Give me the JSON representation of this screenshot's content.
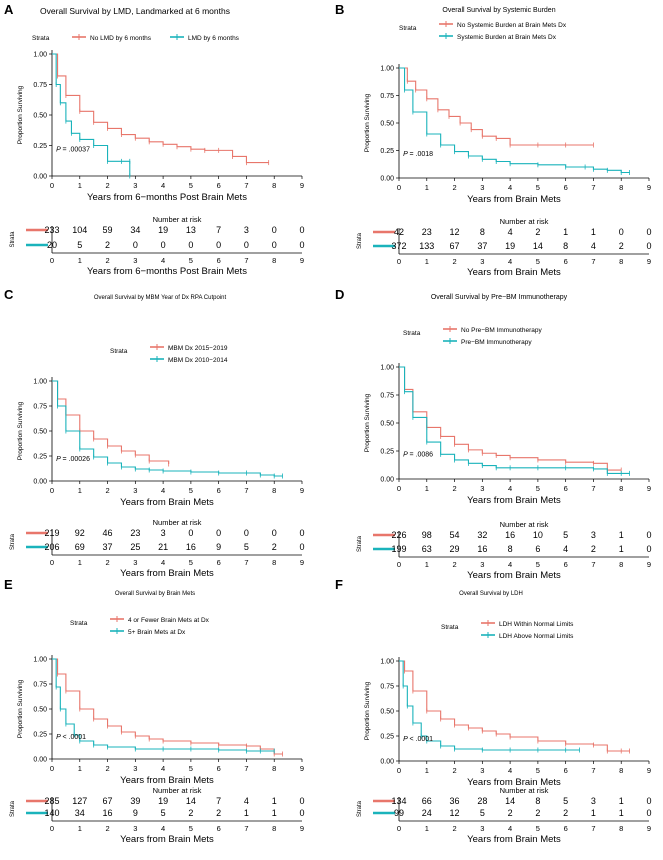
{
  "colors": {
    "red": "#e8766b",
    "teal": "#1ab3bb",
    "axis": "#000000"
  },
  "chart_data": [
    {
      "panel": "A",
      "type": "line",
      "title": "Overall Survival by LMD, Landmarked at 6 months",
      "legend_title": "Strata",
      "legend": [
        "No LMD by 6 months",
        "LMD by 6 months"
      ],
      "xlabel": "Years from 6−months Post Brain Mets",
      "ylabel": "Proportion Surviving",
      "xlim": [
        0,
        9
      ],
      "ylim": [
        0,
        1
      ],
      "xticks": [
        "0",
        "1",
        "2",
        "3",
        "4",
        "5",
        "6",
        "7",
        "8",
        "9"
      ],
      "yticks": [
        "0.00",
        "0.25",
        "0.50",
        "0.75",
        "1.00"
      ],
      "p_label": "P",
      "p_value": "= .00037",
      "risk_title": "Number at risk",
      "risk_strata_label": "Strata",
      "risk_xlabel": "Years from 6−months Post Brain Mets",
      "series": [
        {
          "name": "No LMD by 6 months",
          "color": "red",
          "x": [
            0,
            0.2,
            0.5,
            1,
            1.5,
            2,
            2.5,
            3,
            3.5,
            4,
            4.5,
            5,
            5.5,
            6,
            6.5,
            7,
            7.8
          ],
          "y": [
            1.0,
            0.82,
            0.66,
            0.53,
            0.44,
            0.39,
            0.34,
            0.31,
            0.28,
            0.26,
            0.24,
            0.22,
            0.21,
            0.21,
            0.16,
            0.11,
            0.11
          ]
        },
        {
          "name": "LMD by 6 months",
          "color": "teal",
          "x": [
            0,
            0.15,
            0.3,
            0.5,
            0.7,
            1,
            1.5,
            2,
            2.5,
            2.8,
            2.8
          ],
          "y": [
            1.0,
            0.75,
            0.6,
            0.45,
            0.35,
            0.3,
            0.25,
            0.12,
            0.12,
            0.12,
            0.0
          ]
        }
      ],
      "risk": [
        [
          "233",
          "104",
          "59",
          "34",
          "19",
          "13",
          "7",
          "3",
          "0",
          "0"
        ],
        [
          "20",
          "5",
          "2",
          "0",
          "0",
          "0",
          "0",
          "0",
          "0",
          "0"
        ]
      ]
    },
    {
      "panel": "B",
      "type": "line",
      "title": "Overall Survival by Systemic Burden",
      "legend_title": "Strata",
      "legend": [
        "No Systemic Burden at Brain Mets Dx",
        "Systemic Burden at Brain Mets Dx"
      ],
      "xlabel": "Years from Brain Mets",
      "ylabel": "Proportion Surviving",
      "xlim": [
        0,
        9
      ],
      "ylim": [
        0,
        1
      ],
      "xticks": [
        "0",
        "1",
        "2",
        "3",
        "4",
        "5",
        "6",
        "7",
        "8",
        "9"
      ],
      "yticks": [
        "0.00",
        "0.25",
        "0.50",
        "0.75",
        "1.00"
      ],
      "p_label": "P",
      "p_value": "= .0018",
      "risk_title": "Number at risk",
      "risk_strata_label": "Strata",
      "risk_xlabel": "Years from Brain Mets",
      "series": [
        {
          "name": "No Systemic Burden at Brain Mets Dx",
          "color": "red",
          "x": [
            0,
            0.3,
            0.6,
            1,
            1.4,
            1.8,
            2.2,
            2.6,
            3,
            3.5,
            4,
            5,
            6,
            7
          ],
          "y": [
            1.0,
            0.88,
            0.8,
            0.72,
            0.62,
            0.56,
            0.5,
            0.44,
            0.38,
            0.36,
            0.3,
            0.3,
            0.3,
            0.3
          ]
        },
        {
          "name": "Systemic Burden at Brain Mets Dx",
          "color": "teal",
          "x": [
            0,
            0.2,
            0.5,
            1,
            1.5,
            2,
            2.5,
            3,
            3.5,
            4,
            5,
            6,
            6.7,
            7,
            7.5,
            8,
            8.3
          ],
          "y": [
            1.0,
            0.8,
            0.6,
            0.4,
            0.3,
            0.24,
            0.2,
            0.17,
            0.15,
            0.13,
            0.12,
            0.1,
            0.1,
            0.08,
            0.07,
            0.05,
            0.05
          ]
        }
      ],
      "risk": [
        [
          "42",
          "23",
          "12",
          "8",
          "4",
          "2",
          "1",
          "1",
          "0",
          "0"
        ],
        [
          "372",
          "133",
          "67",
          "37",
          "19",
          "14",
          "8",
          "4",
          "2",
          "0"
        ]
      ]
    },
    {
      "panel": "C",
      "type": "line",
      "title": "Overall Survival by MBM Year of Dx RPA Cutpoint",
      "legend_title": "Strata",
      "legend": [
        "MBM Dx 2015−2019",
        "MBM Dx 2010−2014"
      ],
      "xlabel": "Years from Brain Mets",
      "ylabel": "Proportion Surviving",
      "xlim": [
        0,
        9
      ],
      "ylim": [
        0,
        1
      ],
      "xticks": [
        "0",
        "1",
        "2",
        "3",
        "4",
        "5",
        "6",
        "7",
        "8",
        "9"
      ],
      "yticks": [
        "0.00",
        "0.25",
        "0.50",
        "0.75",
        "1.00"
      ],
      "p_label": "P",
      "p_value": "= .00026",
      "risk_title": "Number at risk",
      "risk_strata_label": "Strata",
      "risk_xlabel": "Years from Brain Mets",
      "series": [
        {
          "name": "MBM Dx 2015−2019",
          "color": "red",
          "x": [
            0,
            0.2,
            0.5,
            1,
            1.5,
            2,
            2.5,
            3,
            3.5,
            4.2
          ],
          "y": [
            1.0,
            0.82,
            0.66,
            0.5,
            0.42,
            0.35,
            0.3,
            0.26,
            0.2,
            0.17
          ]
        },
        {
          "name": "MBM Dx 2010−2014",
          "color": "teal",
          "x": [
            0,
            0.2,
            0.5,
            1,
            1.5,
            2,
            2.5,
            3,
            3.5,
            4,
            5,
            6,
            7,
            7.5,
            8,
            8.3
          ],
          "y": [
            1.0,
            0.75,
            0.5,
            0.32,
            0.24,
            0.18,
            0.14,
            0.12,
            0.11,
            0.1,
            0.09,
            0.08,
            0.08,
            0.06,
            0.05,
            0.05
          ]
        }
      ],
      "risk": [
        [
          "219",
          "92",
          "46",
          "23",
          "3",
          "0",
          "0",
          "0",
          "0",
          "0"
        ],
        [
          "206",
          "69",
          "37",
          "25",
          "21",
          "16",
          "9",
          "5",
          "2",
          "0"
        ]
      ]
    },
    {
      "panel": "D",
      "type": "line",
      "title": "Overall Survival by Pre−BM Immunotherapy",
      "legend_title": "Strata",
      "legend": [
        "No Pre−BM Immunotherapy",
        "Pre−BM Immunotherapy"
      ],
      "xlabel": "Years from Brain Mets",
      "ylabel": "Proportion Surviving",
      "xlim": [
        0,
        9
      ],
      "ylim": [
        0,
        1
      ],
      "xticks": [
        "0",
        "1",
        "2",
        "3",
        "4",
        "5",
        "6",
        "7",
        "8",
        "9"
      ],
      "yticks": [
        "0.00",
        "0.25",
        "0.50",
        "0.75",
        "1.00"
      ],
      "p_label": "P",
      "p_value": "= .0086",
      "risk_title": "Number at risk",
      "risk_strata_label": "Strata",
      "risk_xlabel": "Years from Brain Mets",
      "series": [
        {
          "name": "No Pre−BM Immunotherapy",
          "color": "red",
          "x": [
            0,
            0.2,
            0.5,
            1,
            1.5,
            2,
            2.5,
            3,
            3.5,
            4,
            5,
            6,
            7,
            7.5,
            8
          ],
          "y": [
            1.0,
            0.8,
            0.6,
            0.46,
            0.38,
            0.31,
            0.26,
            0.23,
            0.21,
            0.19,
            0.17,
            0.15,
            0.14,
            0.08,
            0.08
          ]
        },
        {
          "name": "Pre−BM Immunotherapy",
          "color": "teal",
          "x": [
            0,
            0.2,
            0.5,
            1,
            1.5,
            2,
            2.5,
            3,
            3.5,
            4,
            5,
            6,
            7,
            7.5,
            8,
            8.3
          ],
          "y": [
            1.0,
            0.78,
            0.55,
            0.33,
            0.22,
            0.17,
            0.14,
            0.12,
            0.1,
            0.1,
            0.1,
            0.1,
            0.09,
            0.05,
            0.05,
            0.05
          ]
        }
      ],
      "risk": [
        [
          "226",
          "98",
          "54",
          "32",
          "16",
          "10",
          "5",
          "3",
          "1",
          "0"
        ],
        [
          "199",
          "63",
          "29",
          "16",
          "8",
          "6",
          "4",
          "2",
          "1",
          "0"
        ]
      ]
    },
    {
      "panel": "E",
      "type": "line",
      "title": "Overall Survival by Brain Mets",
      "legend_title": "Strata",
      "legend": [
        "4 or Fewer Brain Mets at Dx",
        "5+ Brain Mets at Dx"
      ],
      "xlabel": "Years from Brain Mets",
      "ylabel": "Proportion Surviving",
      "xlim": [
        0,
        9
      ],
      "ylim": [
        0,
        1
      ],
      "xticks": [
        "0",
        "1",
        "2",
        "3",
        "4",
        "5",
        "6",
        "7",
        "8",
        "9"
      ],
      "yticks": [
        "0.00",
        "0.25",
        "0.50",
        "0.75",
        "1.00"
      ],
      "p_label": "P",
      "p_value": "< .0001",
      "risk_title": "Number at risk",
      "risk_strata_label": "Strata",
      "risk_xlabel": "Years from Brain Mets",
      "series": [
        {
          "name": "4 or Fewer Brain Mets at Dx",
          "color": "red",
          "x": [
            0,
            0.2,
            0.5,
            1,
            1.5,
            2,
            2.5,
            3,
            3.5,
            4,
            5,
            6,
            7,
            7.5,
            8,
            8.3
          ],
          "y": [
            1.0,
            0.85,
            0.68,
            0.5,
            0.4,
            0.33,
            0.27,
            0.23,
            0.2,
            0.18,
            0.16,
            0.14,
            0.13,
            0.1,
            0.05,
            0.05
          ]
        },
        {
          "name": "5+ Brain Mets at Dx",
          "color": "teal",
          "x": [
            0,
            0.15,
            0.3,
            0.5,
            0.8,
            1,
            1.5,
            2,
            3,
            4,
            5,
            6,
            7,
            7.5,
            8
          ],
          "y": [
            1.0,
            0.72,
            0.5,
            0.35,
            0.24,
            0.18,
            0.14,
            0.12,
            0.1,
            0.1,
            0.1,
            0.09,
            0.08,
            0.08,
            0.08
          ]
        }
      ],
      "risk": [
        [
          "285",
          "127",
          "67",
          "39",
          "19",
          "14",
          "7",
          "4",
          "1",
          "0"
        ],
        [
          "140",
          "34",
          "16",
          "9",
          "5",
          "2",
          "2",
          "1",
          "1",
          "0"
        ]
      ]
    },
    {
      "panel": "F",
      "type": "line",
      "title": "Overall Survival by LDH",
      "legend_title": "Strata",
      "legend": [
        "LDH Within Normal Limits",
        "LDH Above Normal Limits"
      ],
      "xlabel": "Years from Brain Mets",
      "ylabel": "Proportion Surviving",
      "xlim": [
        0,
        9
      ],
      "ylim": [
        0,
        1
      ],
      "xticks": [
        "0",
        "1",
        "2",
        "3",
        "4",
        "5",
        "6",
        "7",
        "8",
        "9"
      ],
      "yticks": [
        "0.00",
        "0.25",
        "0.50",
        "0.75",
        "1.00"
      ],
      "p_label": "P",
      "p_value": "< .0001",
      "risk_title": "Number at risk",
      "risk_strata_label": "Strata",
      "risk_xlabel": "Years from Brain Mets",
      "series": [
        {
          "name": "LDH Within Normal Limits",
          "color": "red",
          "x": [
            0,
            0.2,
            0.5,
            1,
            1.5,
            2,
            2.5,
            3,
            3.5,
            4,
            5,
            6,
            7,
            7.5,
            8,
            8.3
          ],
          "y": [
            1.0,
            0.9,
            0.7,
            0.5,
            0.42,
            0.36,
            0.33,
            0.3,
            0.27,
            0.24,
            0.2,
            0.17,
            0.16,
            0.1,
            0.1,
            0.1
          ]
        },
        {
          "name": "LDH Above Normal Limits",
          "color": "teal",
          "x": [
            0,
            0.15,
            0.3,
            0.5,
            0.8,
            1,
            1.5,
            2,
            3,
            4,
            5,
            6,
            6.5
          ],
          "y": [
            1.0,
            0.75,
            0.55,
            0.38,
            0.25,
            0.2,
            0.15,
            0.12,
            0.11,
            0.11,
            0.11,
            0.11,
            0.11
          ]
        }
      ],
      "risk": [
        [
          "134",
          "66",
          "36",
          "28",
          "14",
          "8",
          "5",
          "3",
          "1",
          "0"
        ],
        [
          "99",
          "24",
          "12",
          "5",
          "2",
          "2",
          "2",
          "1",
          "1",
          "0"
        ]
      ]
    }
  ]
}
